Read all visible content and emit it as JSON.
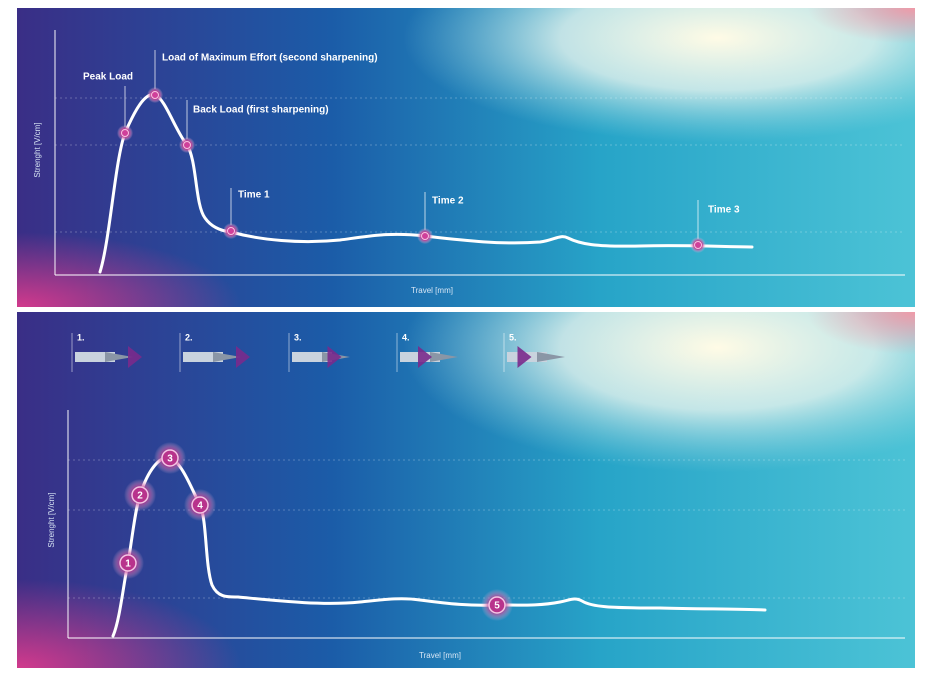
{
  "top": {
    "y_axis_label": "Strenght [V/cm]",
    "x_axis_label": "Travel [mm]",
    "annotations": [
      "Peak Load",
      "Load of Maximum Effort (second sharpening)",
      "Back Load (first sharpening)",
      "Time 1",
      "Time 2",
      "Time 3"
    ]
  },
  "bottom": {
    "y_axis_label": "Strenght [V/cm]",
    "x_axis_label": "Travel [mm]",
    "steps": [
      "1.",
      "2.",
      "3.",
      "4.",
      "5."
    ],
    "markers": [
      "1",
      "2",
      "3",
      "4",
      "5"
    ]
  }
}
